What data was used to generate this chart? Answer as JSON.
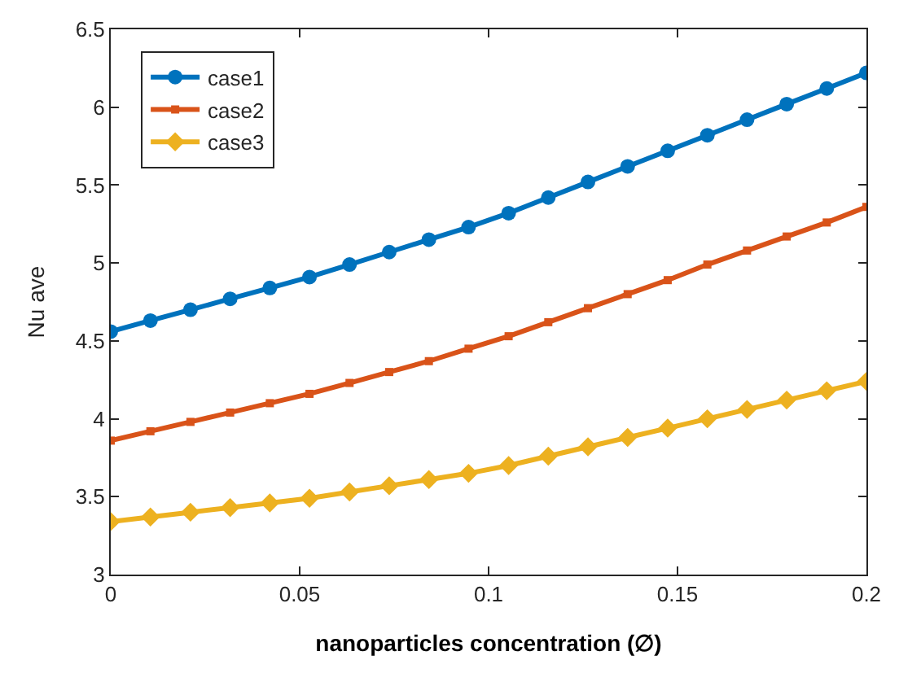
{
  "chart_data": {
    "type": "line",
    "xlabel": "nanoparticles concentration (∅)",
    "ylabel": "Nu ave",
    "x": [
      0,
      0.0105,
      0.0211,
      0.0316,
      0.0421,
      0.0526,
      0.0632,
      0.0737,
      0.0842,
      0.0947,
      0.1053,
      0.1158,
      0.1263,
      0.1368,
      0.1474,
      0.1579,
      0.1684,
      0.1789,
      0.1895,
      0.2
    ],
    "series": [
      {
        "name": "case1",
        "color": "#0072bd",
        "marker": "circle",
        "values": [
          4.56,
          4.63,
          4.7,
          4.77,
          4.84,
          4.91,
          4.99,
          5.07,
          5.15,
          5.23,
          5.32,
          5.42,
          5.52,
          5.62,
          5.72,
          5.82,
          5.92,
          6.02,
          6.12,
          6.22
        ]
      },
      {
        "name": "case2",
        "color": "#d95319",
        "marker": "square",
        "values": [
          3.86,
          3.92,
          3.98,
          4.04,
          4.1,
          4.16,
          4.23,
          4.3,
          4.37,
          4.45,
          4.53,
          4.62,
          4.71,
          4.8,
          4.89,
          4.99,
          5.08,
          5.17,
          5.26,
          5.36
        ]
      },
      {
        "name": "case3",
        "color": "#edb120",
        "marker": "diamond",
        "values": [
          3.34,
          3.37,
          3.4,
          3.43,
          3.46,
          3.49,
          3.53,
          3.57,
          3.61,
          3.65,
          3.7,
          3.76,
          3.82,
          3.88,
          3.94,
          4.0,
          4.06,
          4.12,
          4.18,
          4.24
        ]
      }
    ],
    "xlim": [
      0,
      0.2
    ],
    "xticks": [
      0,
      0.05,
      0.1,
      0.15,
      0.2
    ],
    "ylim": [
      3,
      6.5
    ],
    "yticks": [
      3,
      3.5,
      4,
      4.5,
      5,
      5.5,
      6,
      6.5
    ],
    "legend": "top left",
    "line_style": "solid"
  }
}
